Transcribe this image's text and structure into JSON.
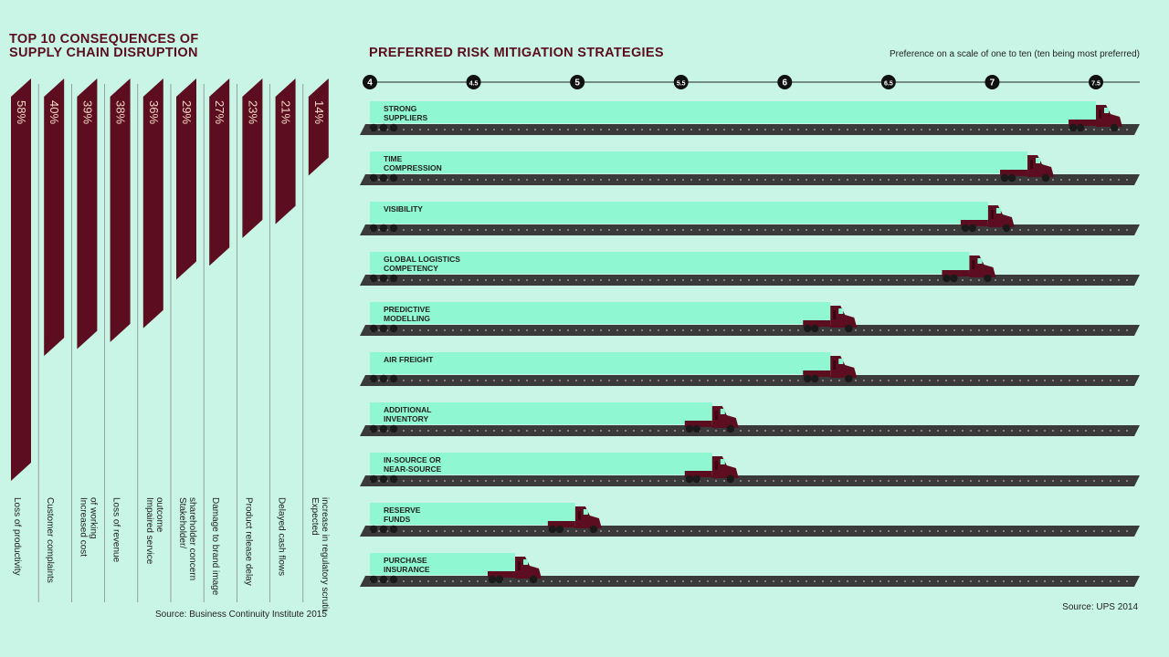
{
  "left_title_line1": "TOP 10 CONSEQUENCES OF",
  "left_title_line2": "SUPPLY CHAIN DISRUPTION",
  "right_title": "PREFERRED RISK MITIGATION STRATEGIES",
  "scale_note": "Preference on a scale of one to ten (ten being most preferred)",
  "source_left": "Source: Business Continuity Institute 2015",
  "source_right": "Source: UPS 2014",
  "colors": {
    "background": "#c8f5e6",
    "maroon": "#5c0d1f",
    "bar": "#8ff7d1",
    "road": "#3a3a3a"
  },
  "chart_data": [
    {
      "type": "bar",
      "orientation": "vertical",
      "categories": [
        "Loss of productivity",
        "Customer complaints",
        "Increased cost of working",
        "Loss of revenue",
        "Impaired service outcome",
        "Stakeholder/ shareholder concern",
        "Damage to brand image",
        "Product release delay",
        "Delayed cash flows",
        "Expected increase in regulatory scrutiny"
      ],
      "values": [
        58,
        40,
        39,
        38,
        36,
        29,
        27,
        23,
        21,
        14
      ],
      "labels": [
        "58%",
        "40%",
        "39%",
        "38%",
        "36%",
        "29%",
        "27%",
        "23%",
        "21%",
        "14%"
      ],
      "unit": "%"
    },
    {
      "type": "bar",
      "orientation": "horizontal",
      "categories": [
        [
          "STRONG",
          "SUPPLIERS"
        ],
        [
          "TIME",
          "COMPRESSION"
        ],
        [
          "VISIBILITY"
        ],
        [
          "GLOBAL LOGISTICS",
          "COMPETENCY"
        ],
        [
          "PREDICTIVE",
          "MODELLING"
        ],
        [
          "AIR FREIGHT"
        ],
        [
          "ADDITIONAL",
          "INVENTORY"
        ],
        [
          "IN-SOURCE OR",
          "NEAR-SOURCE"
        ],
        [
          "RESERVE",
          "FUNDS"
        ],
        [
          "PURCHASE",
          "INSURANCE"
        ]
      ],
      "values": [
        7.5,
        7.17,
        6.98,
        6.89,
        6.22,
        6.22,
        5.65,
        5.65,
        4.99,
        4.7
      ],
      "xticks": [
        "4",
        "4.5",
        "5",
        "5.5",
        "6",
        "6.5",
        "7",
        "7.5"
      ],
      "xlim": [
        4,
        7.5
      ]
    }
  ]
}
